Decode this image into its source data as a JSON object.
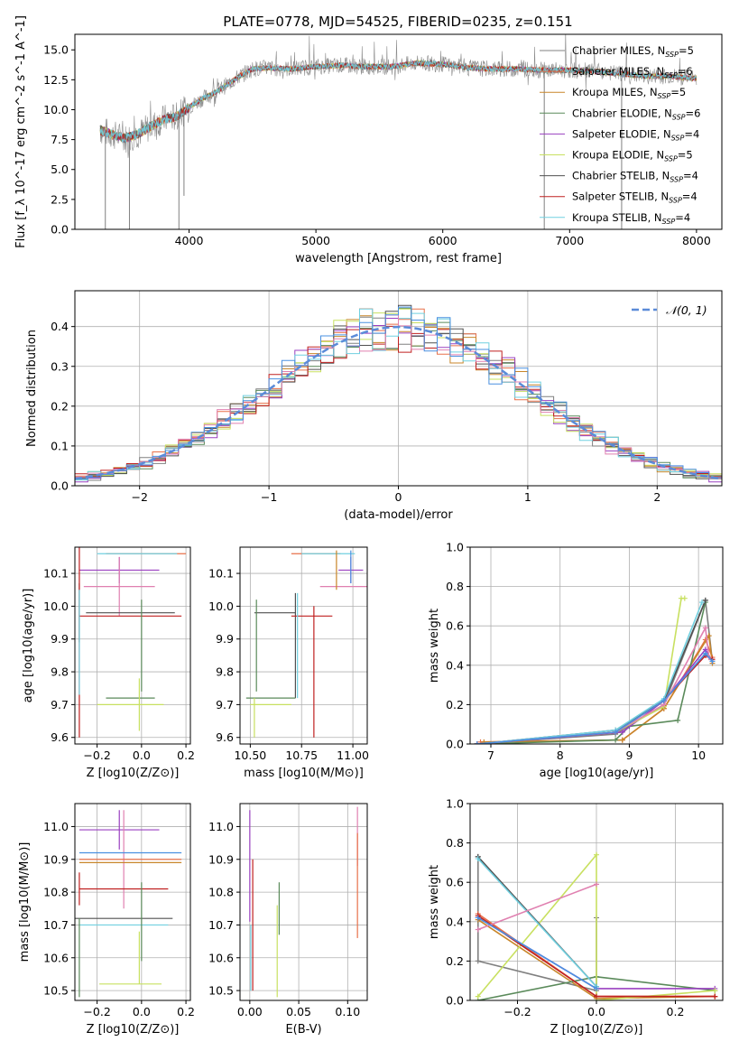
{
  "figure_title": "PLATE=0778, MJD=54525, FIBERID=0235, z=0.151",
  "colors": {
    "chabrier_miles": "#808080",
    "salpeter_miles": "#e8704a",
    "kroupa_miles": "#c8862a",
    "chabrier_elodie": "#5a8a5a",
    "salpeter_elodie": "#9a40c0",
    "kroupa_elodie": "#c8e060",
    "chabrier_stelib": "#505050",
    "salpeter_stelib": "#c02020",
    "kroupa_stelib": "#70d0e0",
    "normal_curve": "#5b8bd8",
    "pink": "#e080b0",
    "blue": "#4a90e0",
    "lime": "#b8d840"
  },
  "chart_data": [
    {
      "type": "line",
      "panel": "spectrum",
      "title": "PLATE=0778, MJD=54525, FIBERID=0235, z=0.151",
      "xlabel": "wavelength [Angstrom, rest frame]",
      "ylabel": "Flux [f_λ 10^-17 erg cm^-2 s^-1 A^-1]",
      "xlim": [
        3100,
        8200
      ],
      "ylim": [
        0,
        16.3
      ],
      "xticks": [
        4000,
        5000,
        6000,
        7000,
        8000
      ],
      "yticks": [
        0.0,
        2.5,
        5.0,
        7.5,
        10.0,
        12.5,
        15.0
      ],
      "legend_position": "right",
      "legend": [
        {
          "label": "Chabrier MILES, N_SSP=5",
          "color": "chabrier_miles"
        },
        {
          "label": "Salpeter MILES, N_SSP=6",
          "color": "salpeter_miles"
        },
        {
          "label": "Kroupa MILES, N_SSP=5",
          "color": "kroupa_miles"
        },
        {
          "label": "Chabrier ELODIE, N_SSP=6",
          "color": "chabrier_elodie"
        },
        {
          "label": "Salpeter ELODIE, N_SSP=4",
          "color": "salpeter_elodie"
        },
        {
          "label": "Kroupa ELODIE, N_SSP=5",
          "color": "kroupa_elodie"
        },
        {
          "label": "Chabrier STELIB, N_SSP=4",
          "color": "chabrier_stelib"
        },
        {
          "label": "Salpeter STELIB, N_SSP=4",
          "color": "salpeter_stelib"
        },
        {
          "label": "Kroupa STELIB, N_SSP=4",
          "color": "kroupa_stelib"
        }
      ],
      "continuum": {
        "x": [
          3300,
          3400,
          3500,
          3600,
          3700,
          3800,
          3900,
          4000,
          4100,
          4200,
          4300,
          4400,
          4500,
          4600,
          4800,
          5000,
          5200,
          5400,
          5600,
          5800,
          6000,
          6200,
          6400,
          6600,
          6800,
          7000,
          7200,
          7400,
          7600,
          7800,
          8000
        ],
        "y": [
          8.3,
          7.9,
          7.6,
          8.0,
          8.6,
          9.2,
          9.4,
          10.2,
          10.9,
          11.4,
          12.1,
          12.8,
          13.4,
          13.5,
          13.4,
          13.6,
          13.7,
          13.6,
          13.6,
          13.9,
          13.8,
          13.5,
          13.4,
          13.4,
          13.3,
          13.3,
          13.2,
          13.0,
          12.8,
          12.8,
          12.6
        ]
      },
      "dips": [
        {
          "x": 3340,
          "y": 0.0
        },
        {
          "x": 3530,
          "y": 0.0
        },
        {
          "x": 3920,
          "y": 0.0
        },
        {
          "x": 3960,
          "y": 2.8
        },
        {
          "x": 6800,
          "y": 0.0
        },
        {
          "x": 7410,
          "y": 0.0
        }
      ]
    },
    {
      "type": "area",
      "panel": "residual histogram",
      "xlabel": "(data-model)/error",
      "ylabel": "Normed distribution",
      "xlim": [
        -2.5,
        2.5
      ],
      "ylim": [
        0,
        0.49
      ],
      "xticks": [
        -2,
        -1,
        0,
        1,
        2
      ],
      "yticks": [
        0.0,
        0.1,
        0.2,
        0.3,
        0.4
      ],
      "legend_position": "top-right",
      "legend": [
        {
          "label": "𝒩(0, 1)",
          "color": "normal_curve"
        }
      ],
      "bin_width": 0.1
    },
    {
      "type": "scatter",
      "panel": "age vs Z",
      "xlabel": "Z [log10(Z/Z⊙)]",
      "ylabel": "age  [log10(age/yr)]",
      "xlim": [
        -0.3,
        0.22
      ],
      "ylim": [
        9.58,
        10.18
      ],
      "xticks": [
        -0.2,
        0.0,
        0.2
      ],
      "yticks": [
        9.6,
        9.7,
        9.8,
        9.9,
        10.0,
        10.1
      ],
      "points": [
        {
          "x": 0.02,
          "y": 10.16,
          "xerr": 0.18,
          "yerr": 0.0,
          "color": "salpeter_miles"
        },
        {
          "x": -0.02,
          "y": 10.16,
          "xerr": 0.18,
          "yerr": 0.0,
          "color": "kroupa_stelib"
        },
        {
          "x": -0.1,
          "y": 10.11,
          "xerr": 0.18,
          "yerr": 0.04,
          "color": "salpeter_elodie"
        },
        {
          "x": -0.1,
          "y": 10.06,
          "xerr": 0.16,
          "yerr": 0.09,
          "color": "pink"
        },
        {
          "x": -0.28,
          "y": 9.98,
          "xerr": 0.0,
          "yerr": 0.09,
          "color": "chabrier_stelib"
        },
        {
          "x": -0.05,
          "y": 9.98,
          "xerr": 0.2,
          "yerr": 0.0,
          "color": "chabrier_stelib"
        },
        {
          "x": -0.05,
          "y": 9.97,
          "xerr": 0.23,
          "yerr": 0.0,
          "color": "salpeter_stelib"
        },
        {
          "x": -0.28,
          "y": 9.97,
          "xerr": 0.0,
          "yerr": 0.37,
          "color": "salpeter_stelib"
        },
        {
          "x": 0.0,
          "y": 9.88,
          "xerr": 0.0,
          "yerr": 0.14,
          "color": "chabrier_elodie"
        },
        {
          "x": -0.05,
          "y": 9.72,
          "xerr": 0.11,
          "yerr": 0.0,
          "color": "chabrier_elodie"
        },
        {
          "x": -0.05,
          "y": 9.7,
          "xerr": 0.15,
          "yerr": 0.0,
          "color": "kroupa_elodie"
        },
        {
          "x": -0.01,
          "y": 9.7,
          "xerr": 0.0,
          "yerr": 0.08,
          "color": "kroupa_elodie"
        },
        {
          "x": -0.28,
          "y": 9.89,
          "xerr": 0.0,
          "yerr": 0.16,
          "color": "kroupa_stelib"
        }
      ]
    },
    {
      "type": "scatter",
      "panel": "age vs mass",
      "xlabel": "mass [log10(M/M⊙)]",
      "ylabel": "",
      "xlim": [
        10.45,
        11.07
      ],
      "ylim": [
        9.58,
        10.18
      ],
      "xticks": [
        10.5,
        10.75,
        11.0
      ],
      "yticks": [
        9.6,
        9.7,
        9.8,
        9.9,
        10.0,
        10.1
      ],
      "points": [
        {
          "x": 10.82,
          "y": 10.16,
          "xerr": 0.12,
          "yerr": 0.0,
          "color": "salpeter_miles"
        },
        {
          "x": 10.88,
          "y": 10.16,
          "xerr": 0.13,
          "yerr": 0.0,
          "color": "kroupa_stelib"
        },
        {
          "x": 10.99,
          "y": 10.11,
          "xerr": 0.06,
          "yerr": 0.04,
          "color": "salpeter_elodie"
        },
        {
          "x": 10.96,
          "y": 10.06,
          "xerr": 0.12,
          "yerr": 0.0,
          "color": "pink"
        },
        {
          "x": 10.99,
          "y": 10.12,
          "xerr": 0.0,
          "yerr": 0.05,
          "color": "blue"
        },
        {
          "x": 10.92,
          "y": 10.11,
          "xerr": 0.0,
          "yerr": 0.06,
          "color": "kroupa_miles"
        },
        {
          "x": 10.62,
          "y": 9.98,
          "xerr": 0.1,
          "yerr": 0.0,
          "color": "chabrier_stelib"
        },
        {
          "x": 10.72,
          "y": 9.88,
          "xerr": 0.0,
          "yerr": 0.16,
          "color": "chabrier_stelib"
        },
        {
          "x": 10.8,
          "y": 9.97,
          "xerr": 0.1,
          "yerr": 0.0,
          "color": "salpeter_stelib"
        },
        {
          "x": 10.81,
          "y": 9.8,
          "xerr": 0.0,
          "yerr": 0.2,
          "color": "salpeter_stelib"
        },
        {
          "x": 10.53,
          "y": 9.88,
          "xerr": 0.0,
          "yerr": 0.14,
          "color": "chabrier_elodie"
        },
        {
          "x": 10.6,
          "y": 9.72,
          "xerr": 0.12,
          "yerr": 0.0,
          "color": "chabrier_elodie"
        },
        {
          "x": 10.6,
          "y": 9.7,
          "xerr": 0.1,
          "yerr": 0.0,
          "color": "kroupa_elodie"
        },
        {
          "x": 10.52,
          "y": 9.66,
          "xerr": 0.0,
          "yerr": 0.06,
          "color": "kroupa_elodie"
        },
        {
          "x": 10.73,
          "y": 9.88,
          "xerr": 0.0,
          "yerr": 0.16,
          "color": "kroupa_stelib"
        }
      ]
    },
    {
      "type": "line",
      "panel": "mass weight vs age",
      "xlabel": "age  [log10(age/yr)]",
      "ylabel": "mass weight",
      "xlim": [
        6.7,
        10.35
      ],
      "ylim": [
        0,
        1.0
      ],
      "xticks": [
        7,
        8,
        9,
        10
      ],
      "yticks": [
        0.0,
        0.2,
        0.4,
        0.6,
        0.8,
        1.0
      ],
      "series": [
        {
          "color": "chabrier_miles",
          "x": [
            6.8,
            8.8,
            9.5,
            10.1,
            10.2
          ],
          "y": [
            0.0,
            0.05,
            0.2,
            0.73,
            0.42
          ]
        },
        {
          "color": "salpeter_miles",
          "x": [
            6.85,
            8.9,
            9.5,
            10.1,
            10.2
          ],
          "y": [
            0.01,
            0.02,
            0.18,
            0.53,
            0.44
          ]
        },
        {
          "color": "kroupa_miles",
          "x": [
            6.9,
            8.9,
            9.5,
            10.15,
            10.2
          ],
          "y": [
            0.01,
            0.02,
            0.18,
            0.55,
            0.41
          ]
        },
        {
          "color": "chabrier_elodie",
          "x": [
            6.8,
            8.8,
            9.0,
            9.7,
            10.1
          ],
          "y": [
            0.0,
            0.02,
            0.09,
            0.12,
            0.72
          ]
        },
        {
          "color": "salpeter_elodie",
          "x": [
            6.8,
            8.9,
            9.5,
            10.1,
            10.2
          ],
          "y": [
            0.0,
            0.06,
            0.22,
            0.48,
            0.42
          ]
        },
        {
          "color": "kroupa_elodie",
          "x": [
            6.8,
            8.8,
            9.5,
            9.75,
            9.8
          ],
          "y": [
            0.0,
            0.06,
            0.19,
            0.74,
            0.74
          ]
        },
        {
          "color": "chabrier_stelib",
          "x": [
            6.8,
            8.8,
            9.5,
            10.1
          ],
          "y": [
            0.0,
            0.07,
            0.22,
            0.73
          ]
        },
        {
          "color": "salpeter_stelib",
          "x": [
            6.8,
            8.8,
            9.5,
            10.1,
            10.2
          ],
          "y": [
            0.0,
            0.06,
            0.22,
            0.45,
            0.43
          ]
        },
        {
          "color": "kroupa_stelib",
          "x": [
            6.8,
            8.8,
            9.5,
            10.05
          ],
          "y": [
            0.0,
            0.07,
            0.23,
            0.72
          ]
        },
        {
          "color": "pink",
          "x": [
            6.8,
            8.8,
            9.5,
            10.1,
            10.15
          ],
          "y": [
            0.0,
            0.06,
            0.2,
            0.59,
            0.44
          ]
        },
        {
          "color": "blue",
          "x": [
            6.8,
            8.8,
            9.5,
            10.1,
            10.2
          ],
          "y": [
            0.0,
            0.06,
            0.22,
            0.46,
            0.42
          ]
        }
      ]
    },
    {
      "type": "scatter",
      "panel": "mass vs Z",
      "xlabel": "Z [log10(Z/Z⊙)]",
      "ylabel": "mass [log10(M/M⊙)]",
      "xlim": [
        -0.3,
        0.22
      ],
      "ylim": [
        10.47,
        11.07
      ],
      "xticks": [
        -0.2,
        0.0,
        0.2
      ],
      "yticks": [
        10.5,
        10.6,
        10.7,
        10.8,
        10.9,
        11.0
      ],
      "points": [
        {
          "x": -0.1,
          "y": 10.99,
          "xerr": 0.18,
          "yerr": 0.06,
          "color": "salpeter_elodie"
        },
        {
          "x": -0.08,
          "y": 10.9,
          "xerr": 0.0,
          "yerr": 0.15,
          "color": "pink"
        },
        {
          "x": -0.05,
          "y": 10.92,
          "xerr": 0.23,
          "yerr": 0.0,
          "color": "blue"
        },
        {
          "x": -0.05,
          "y": 10.9,
          "xerr": 0.23,
          "yerr": 0.0,
          "color": "salpeter_miles"
        },
        {
          "x": -0.05,
          "y": 10.89,
          "xerr": 0.23,
          "yerr": 0.0,
          "color": "kroupa_miles"
        },
        {
          "x": -0.08,
          "y": 10.81,
          "xerr": 0.2,
          "yerr": 0.0,
          "color": "salpeter_stelib"
        },
        {
          "x": -0.28,
          "y": 10.81,
          "xerr": 0.0,
          "yerr": 0.05,
          "color": "salpeter_stelib"
        },
        {
          "x": -0.08,
          "y": 10.72,
          "xerr": 0.22,
          "yerr": 0.0,
          "color": "chabrier_stelib"
        },
        {
          "x": -0.08,
          "y": 10.7,
          "xerr": 0.2,
          "yerr": 0.0,
          "color": "kroupa_stelib"
        },
        {
          "x": -0.28,
          "y": 10.6,
          "xerr": 0.0,
          "yerr": 0.12,
          "color": "chabrier_elodie"
        },
        {
          "x": 0.0,
          "y": 10.71,
          "xerr": 0.0,
          "yerr": 0.12,
          "color": "chabrier_elodie"
        },
        {
          "x": -0.05,
          "y": 10.52,
          "xerr": 0.14,
          "yerr": 0.0,
          "color": "kroupa_elodie"
        },
        {
          "x": -0.01,
          "y": 10.6,
          "xerr": 0.0,
          "yerr": 0.08,
          "color": "kroupa_elodie"
        }
      ]
    },
    {
      "type": "scatter",
      "panel": "mass vs E(B-V)",
      "xlabel": "E(B-V)",
      "ylabel": "",
      "xlim": [
        -0.01,
        0.12
      ],
      "ylim": [
        10.47,
        11.07
      ],
      "xticks": [
        0.0,
        0.05,
        0.1
      ],
      "yticks": [
        10.5,
        10.6,
        10.7,
        10.8,
        10.9,
        11.0
      ],
      "points": [
        {
          "x": 0.0,
          "y": 10.88,
          "xerr": 0.0,
          "yerr": 0.17,
          "color": "salpeter_elodie"
        },
        {
          "x": 0.003,
          "y": 10.7,
          "xerr": 0.0,
          "yerr": 0.2,
          "color": "salpeter_stelib"
        },
        {
          "x": 0.001,
          "y": 10.6,
          "xerr": 0.0,
          "yerr": 0.1,
          "color": "kroupa_stelib"
        },
        {
          "x": 0.03,
          "y": 10.75,
          "xerr": 0.0,
          "yerr": 0.08,
          "color": "chabrier_elodie"
        },
        {
          "x": 0.028,
          "y": 10.62,
          "xerr": 0.0,
          "yerr": 0.14,
          "color": "kroupa_elodie"
        },
        {
          "x": 0.11,
          "y": 10.97,
          "xerr": 0.0,
          "yerr": 0.09,
          "color": "pink"
        },
        {
          "x": 0.11,
          "y": 10.82,
          "xerr": 0.0,
          "yerr": 0.16,
          "color": "salpeter_miles"
        }
      ]
    },
    {
      "type": "line",
      "panel": "mass weight vs Z",
      "xlabel": "Z [log10(Z/Z⊙)]",
      "ylabel": "mass weight",
      "xlim": [
        -0.32,
        0.32
      ],
      "ylim": [
        0,
        1.0
      ],
      "xticks": [
        -0.2,
        0.0,
        0.2
      ],
      "yticks": [
        0.0,
        0.2,
        0.4,
        0.6,
        0.8,
        1.0
      ],
      "series": [
        {
          "color": "chabrier_miles",
          "x": [
            -0.3,
            -0.3,
            0.0,
            0.0
          ],
          "y": [
            0.73,
            0.2,
            0.05,
            0.42
          ]
        },
        {
          "color": "salpeter_miles",
          "x": [
            -0.3,
            0.0,
            0.3
          ],
          "y": [
            0.44,
            0.02,
            0.02
          ]
        },
        {
          "color": "kroupa_miles",
          "x": [
            -0.3,
            0.0,
            0.3
          ],
          "y": [
            0.41,
            0.01,
            0.02
          ]
        },
        {
          "color": "chabrier_elodie",
          "x": [
            -0.3,
            0.0,
            0.3
          ],
          "y": [
            0.0,
            0.12,
            0.05
          ]
        },
        {
          "color": "salpeter_elodie",
          "x": [
            -0.3,
            0.0,
            0.3
          ],
          "y": [
            0.42,
            0.06,
            0.06
          ]
        },
        {
          "color": "kroupa_elodie",
          "x": [
            -0.3,
            0.0,
            0.0,
            0.3
          ],
          "y": [
            0.02,
            0.74,
            0.0,
            0.05
          ]
        },
        {
          "color": "chabrier_stelib",
          "x": [
            -0.3,
            0.0
          ],
          "y": [
            0.73,
            0.07
          ]
        },
        {
          "color": "salpeter_stelib",
          "x": [
            -0.3,
            0.0,
            0.3
          ],
          "y": [
            0.43,
            0.02,
            0.02
          ]
        },
        {
          "color": "kroupa_stelib",
          "x": [
            -0.3,
            0.0
          ],
          "y": [
            0.72,
            0.07
          ]
        },
        {
          "color": "pink",
          "x": [
            -0.3,
            0.0
          ],
          "y": [
            0.36,
            0.59
          ]
        },
        {
          "color": "blue",
          "x": [
            -0.3,
            0.0
          ],
          "y": [
            0.42,
            0.06
          ]
        }
      ]
    }
  ]
}
